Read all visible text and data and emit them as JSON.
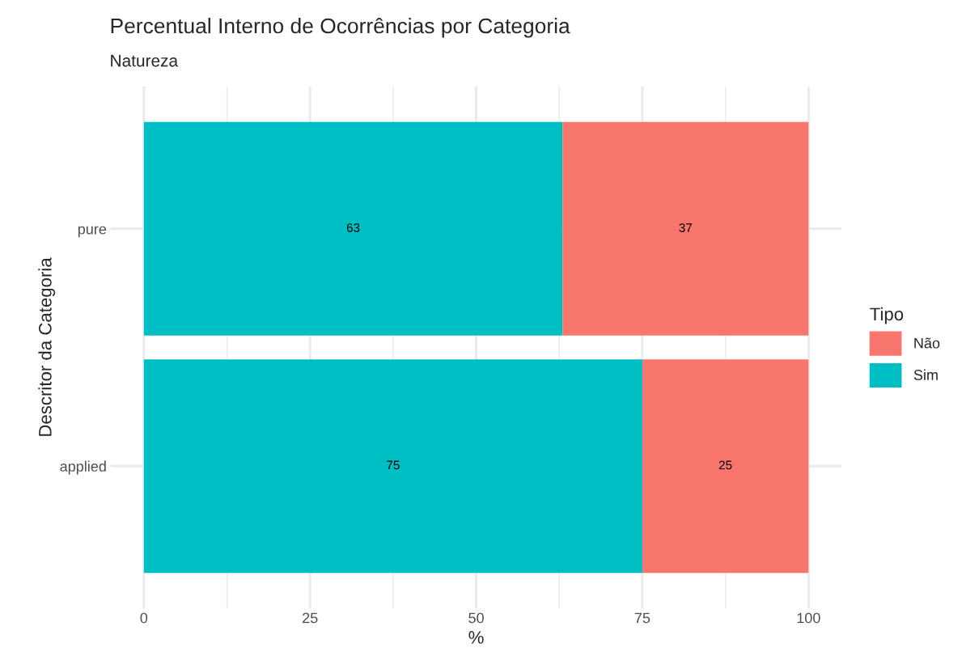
{
  "chart_data": {
    "type": "bar",
    "title": "Percentual Interno de Ocorrências por Categoria",
    "subtitle": "Natureza",
    "xlabel": "%",
    "ylabel": "Descritor da Categoria",
    "legend_title": "Tipo",
    "categories": [
      "pure",
      "applied"
    ],
    "series": [
      {
        "name": "Sim",
        "color": "#00bfc4",
        "values": [
          63,
          75
        ]
      },
      {
        "name": "Não",
        "color": "#f8766d",
        "values": [
          37,
          25
        ]
      }
    ],
    "stacked": true,
    "orientation": "horizontal",
    "xlim": [
      -5,
      105
    ],
    "xticks": [
      0,
      25,
      50,
      75,
      100
    ],
    "grid": true,
    "legend": "right",
    "data_labels": true
  }
}
